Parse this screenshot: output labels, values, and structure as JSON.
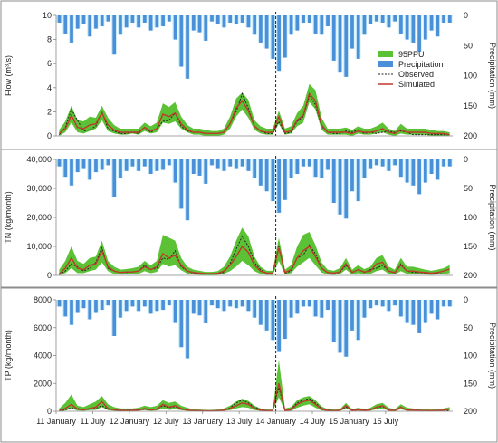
{
  "chart_data": [
    {
      "type": "line",
      "panel": "flow",
      "ylabel": "Flow (m³/s)",
      "ylim": [
        0,
        10
      ],
      "yticks": [
        "0",
        "2",
        "4",
        "6",
        "8",
        "10"
      ],
      "y2label": "Precipitation (mm)",
      "y2lim": [
        0,
        200
      ],
      "y2ticks": [
        "0",
        "50",
        "100",
        "150",
        "200"
      ],
      "legend": {
        "position": "right",
        "entries": [
          "95PPU",
          "Precipitation",
          "Observed",
          "Simulated"
        ]
      },
      "precipitation": [
        12,
        30,
        45,
        22,
        15,
        35,
        22,
        18,
        10,
        65,
        32,
        20,
        12,
        20,
        12,
        25,
        20,
        18,
        10,
        40,
        85,
        105,
        25,
        28,
        42,
        10,
        15,
        20,
        12,
        15,
        12,
        20,
        32,
        45,
        55,
        72,
        92,
        70,
        32,
        25,
        12,
        12,
        30,
        32,
        18,
        75,
        95,
        102,
        55,
        72,
        32,
        15,
        10,
        12,
        20,
        10,
        30,
        40,
        45,
        60,
        40,
        25,
        35,
        12,
        12
      ],
      "series": [
        {
          "name": "Observed",
          "values": [
            0.1,
            0.7,
            2.2,
            1.3,
            0.4,
            0.5,
            0.8,
            2.0,
            0.6,
            0.4,
            0.2,
            0.2,
            0.3,
            0.2,
            0.7,
            0.3,
            0.6,
            1.2,
            1.3,
            1.9,
            0.8,
            0.4,
            0.3,
            0.3,
            0.2,
            0.2,
            0.2,
            0.3,
            1.0,
            2.0,
            3.5,
            2.3,
            0.8,
            0.4,
            0.2,
            0.2,
            1.2,
            0.2,
            0.3,
            1.2,
            1.6,
            3.3,
            2.6,
            0.8,
            0.3,
            0.2,
            0.2,
            0.4,
            0.3,
            0.5,
            0.2,
            0.3,
            0.2,
            0.3,
            0.4,
            0.3,
            0.4,
            0.3,
            0.1,
            0.1,
            0.1,
            0.1,
            0.1,
            0.1,
            0.1
          ]
        },
        {
          "name": "Simulated",
          "values": [
            0.2,
            0.6,
            1.7,
            0.7,
            0.6,
            0.9,
            1.0,
            1.9,
            0.9,
            0.5,
            0.3,
            0.3,
            0.3,
            0.3,
            0.7,
            0.4,
            0.6,
            1.8,
            1.6,
            1.9,
            1.0,
            0.5,
            0.3,
            0.3,
            0.2,
            0.2,
            0.2,
            0.3,
            1.0,
            2.3,
            2.9,
            2.1,
            0.8,
            0.4,
            0.3,
            0.3,
            1.6,
            0.3,
            0.4,
            1.3,
            1.7,
            3.5,
            2.9,
            0.9,
            0.3,
            0.3,
            0.3,
            0.3,
            0.2,
            0.4,
            0.3,
            0.3,
            0.4,
            0.6,
            0.3,
            0.2,
            0.5,
            0.3,
            0.3,
            0.3,
            0.3,
            0.2,
            0.2,
            0.2,
            0.1
          ]
        },
        {
          "name": "95PPU",
          "lower": [
            0.0,
            0.3,
            1.1,
            0.3,
            0.2,
            0.4,
            0.6,
            1.3,
            0.4,
            0.2,
            0.1,
            0.1,
            0.2,
            0.1,
            0.4,
            0.2,
            0.3,
            1.1,
            1.0,
            1.2,
            0.6,
            0.3,
            0.1,
            0.1,
            0.0,
            0.0,
            0.0,
            0.1,
            0.6,
            1.6,
            2.2,
            1.5,
            0.5,
            0.2,
            0.1,
            0.1,
            1.0,
            0.1,
            0.2,
            0.8,
            1.1,
            2.8,
            2.2,
            0.5,
            0.1,
            0.1,
            0.1,
            0.1,
            0.0,
            0.2,
            0.1,
            0.1,
            0.2,
            0.3,
            0.1,
            0.0,
            0.2,
            0.1,
            0.1,
            0.1,
            0.1,
            0.0,
            0.0,
            0.0,
            0.0
          ],
          "upper": [
            0.5,
            1.2,
            2.5,
            1.3,
            1.2,
            1.6,
            1.5,
            2.5,
            1.5,
            0.9,
            0.6,
            0.6,
            0.6,
            0.6,
            1.1,
            0.8,
            1.1,
            2.7,
            2.4,
            2.8,
            1.6,
            0.9,
            0.6,
            0.6,
            0.5,
            0.4,
            0.4,
            0.6,
            1.6,
            3.1,
            3.6,
            3.0,
            1.3,
            0.8,
            0.6,
            0.6,
            2.1,
            0.6,
            0.8,
            1.9,
            2.5,
            4.3,
            3.8,
            1.5,
            0.6,
            0.6,
            0.6,
            0.7,
            0.5,
            0.8,
            0.6,
            0.6,
            0.8,
            1.1,
            0.6,
            0.4,
            1.0,
            0.6,
            0.6,
            0.6,
            0.6,
            0.5,
            0.4,
            0.4,
            0.3
          ]
        }
      ]
    },
    {
      "type": "line",
      "panel": "tn",
      "ylabel": "TN (kg/month)",
      "ylim": [
        0,
        40000
      ],
      "yticks": [
        "0",
        "10,000",
        "20,000",
        "30,000",
        "40,000"
      ],
      "y2label": "Precipitation (mm)",
      "y2lim": [
        0,
        200
      ],
      "y2ticks": [
        "0",
        "50",
        "100",
        "150",
        "200"
      ],
      "precipitation": [
        12,
        30,
        45,
        22,
        15,
        35,
        22,
        18,
        10,
        65,
        32,
        20,
        12,
        20,
        12,
        25,
        20,
        18,
        10,
        40,
        85,
        105,
        25,
        28,
        42,
        10,
        15,
        20,
        12,
        15,
        12,
        20,
        32,
        45,
        55,
        72,
        92,
        70,
        32,
        25,
        12,
        12,
        30,
        32,
        18,
        75,
        95,
        102,
        55,
        72,
        32,
        15,
        10,
        12,
        20,
        10,
        30,
        40,
        45,
        60,
        40,
        25,
        35,
        12,
        12
      ],
      "series": [
        {
          "name": "Observed",
          "values": [
            300,
            1500,
            4000,
            3000,
            1500,
            2500,
            4500,
            9500,
            2500,
            1500,
            1000,
            1000,
            1200,
            1500,
            3500,
            2000,
            2500,
            6000,
            5500,
            8500,
            3000,
            1500,
            800,
            600,
            500,
            500,
            600,
            1000,
            4000,
            9000,
            13500,
            10000,
            4500,
            2000,
            800,
            800,
            10000,
            800,
            1500,
            6000,
            7000,
            10500,
            7500,
            2500,
            1000,
            800,
            1000,
            3500,
            1000,
            2000,
            1000,
            2000,
            2500,
            3500,
            1500,
            800,
            4000,
            1500,
            1000,
            1000,
            800,
            700,
            600,
            500,
            400
          ]
        },
        {
          "name": "Simulated",
          "values": [
            500,
            2500,
            6000,
            2500,
            2000,
            3500,
            4000,
            8500,
            3000,
            1500,
            1000,
            1200,
            1200,
            1500,
            3000,
            2000,
            3000,
            7500,
            6000,
            7000,
            3500,
            1500,
            1000,
            800,
            600,
            600,
            700,
            1500,
            3500,
            6500,
            10000,
            8000,
            3500,
            1500,
            800,
            800,
            9500,
            1000,
            2000,
            6000,
            8500,
            10000,
            6500,
            2500,
            1000,
            800,
            1200,
            4000,
            1000,
            2000,
            1200,
            1500,
            4000,
            4500,
            1500,
            1000,
            3500,
            1500,
            1500,
            1200,
            1000,
            800,
            1000,
            1500,
            2200
          ]
        },
        {
          "name": "95PPU",
          "lower": [
            0,
            800,
            2500,
            800,
            800,
            1500,
            2000,
            4500,
            1500,
            500,
            300,
            300,
            400,
            500,
            1500,
            800,
            1200,
            4000,
            3000,
            3500,
            1800,
            600,
            300,
            200,
            100,
            100,
            200,
            600,
            1500,
            3000,
            5000,
            3500,
            1500,
            500,
            200,
            200,
            5000,
            300,
            800,
            3000,
            4500,
            6000,
            3500,
            1000,
            300,
            200,
            400,
            2000,
            300,
            800,
            400,
            500,
            1500,
            2000,
            500,
            300,
            1500,
            500,
            500,
            400,
            300,
            200,
            300,
            500,
            800
          ],
          "upper": [
            2000,
            5000,
            10000,
            5000,
            4000,
            6000,
            6500,
            12000,
            5000,
            3000,
            2000,
            2200,
            2500,
            3000,
            5000,
            3500,
            5000,
            14000,
            13000,
            12000,
            6000,
            3000,
            2000,
            1600,
            1200,
            1200,
            1500,
            3000,
            6500,
            12000,
            16500,
            13500,
            6500,
            3000,
            1600,
            1600,
            13000,
            2000,
            3500,
            10000,
            14000,
            15000,
            10500,
            4500,
            2000,
            1600,
            2500,
            6000,
            2000,
            3500,
            2200,
            3000,
            6000,
            7000,
            3000,
            2000,
            6000,
            3000,
            3000,
            2500,
            2000,
            1600,
            2000,
            2500,
            3500
          ]
        }
      ]
    },
    {
      "type": "line",
      "panel": "tp",
      "ylabel": "TP (kg/month)",
      "ylim": [
        0,
        8000
      ],
      "yticks": [
        "0",
        "2000",
        "4000",
        "6000",
        "8000"
      ],
      "y2label": "Precipitation (mm)",
      "y2lim": [
        0,
        200
      ],
      "y2ticks": [
        "0",
        "50",
        "100",
        "150",
        "200"
      ],
      "x_ticks": [
        "11 January",
        "11 July",
        "12 January",
        "12 July",
        "13 January",
        "13 July",
        "14 January",
        "14 July",
        "15 January",
        "15 July"
      ],
      "precipitation": [
        12,
        30,
        45,
        22,
        15,
        35,
        22,
        18,
        10,
        65,
        32,
        20,
        12,
        20,
        12,
        25,
        20,
        18,
        10,
        40,
        85,
        105,
        25,
        28,
        42,
        10,
        15,
        20,
        12,
        15,
        12,
        20,
        32,
        45,
        55,
        72,
        92,
        70,
        32,
        25,
        12,
        12,
        30,
        32,
        18,
        75,
        95,
        102,
        55,
        72,
        32,
        15,
        10,
        12,
        20,
        10,
        30,
        40,
        45,
        60,
        40,
        25,
        35,
        12,
        12
      ],
      "series": [
        {
          "name": "Observed",
          "values": [
            50,
            100,
            250,
            200,
            100,
            150,
            200,
            400,
            150,
            100,
            80,
            80,
            80,
            100,
            150,
            100,
            150,
            400,
            250,
            350,
            150,
            80,
            60,
            50,
            40,
            40,
            50,
            80,
            250,
            600,
            800,
            600,
            300,
            150,
            60,
            60,
            1700,
            80,
            150,
            600,
            800,
            900,
            600,
            200,
            80,
            60,
            80,
            300,
            80,
            150,
            80,
            150,
            250,
            350,
            100,
            60,
            300,
            100,
            80,
            80,
            60,
            50,
            50,
            40,
            30
          ]
        },
        {
          "name": "Simulated",
          "values": [
            50,
            200,
            500,
            150,
            100,
            200,
            300,
            700,
            200,
            100,
            50,
            50,
            60,
            80,
            200,
            100,
            150,
            500,
            300,
            400,
            200,
            80,
            50,
            40,
            30,
            30,
            40,
            80,
            200,
            400,
            600,
            500,
            200,
            80,
            40,
            40,
            2000,
            60,
            100,
            500,
            700,
            800,
            500,
            150,
            50,
            40,
            60,
            400,
            50,
            100,
            60,
            100,
            300,
            400,
            80,
            50,
            300,
            80,
            80,
            60,
            50,
            40,
            60,
            80,
            150
          ]
        },
        {
          "name": "95PPU",
          "lower": [
            0,
            50,
            200,
            50,
            30,
            80,
            100,
            300,
            80,
            30,
            10,
            10,
            20,
            30,
            80,
            30,
            60,
            200,
            100,
            150,
            80,
            30,
            10,
            10,
            0,
            0,
            10,
            30,
            80,
            200,
            300,
            250,
            80,
            30,
            10,
            10,
            1000,
            20,
            40,
            250,
            400,
            500,
            250,
            60,
            20,
            10,
            20,
            200,
            20,
            40,
            20,
            40,
            150,
            200,
            30,
            10,
            150,
            30,
            30,
            20,
            20,
            10,
            20,
            30,
            60
          ],
          "upper": [
            200,
            600,
            1200,
            400,
            300,
            500,
            700,
            1100,
            500,
            300,
            200,
            200,
            200,
            250,
            400,
            300,
            400,
            800,
            600,
            700,
            400,
            250,
            150,
            120,
            100,
            100,
            120,
            200,
            400,
            700,
            900,
            750,
            400,
            200,
            120,
            120,
            3700,
            200,
            300,
            800,
            1000,
            1100,
            800,
            350,
            150,
            120,
            150,
            600,
            150,
            250,
            150,
            250,
            500,
            600,
            250,
            150,
            500,
            250,
            200,
            180,
            150,
            120,
            150,
            200,
            300
          ]
        }
      ]
    }
  ],
  "colors": {
    "ppu": "#5bc236",
    "precip_outline": "#cfeefb",
    "precip_fill": "#4a90d9",
    "observed": "#222222",
    "simulated": "#c0392b"
  }
}
